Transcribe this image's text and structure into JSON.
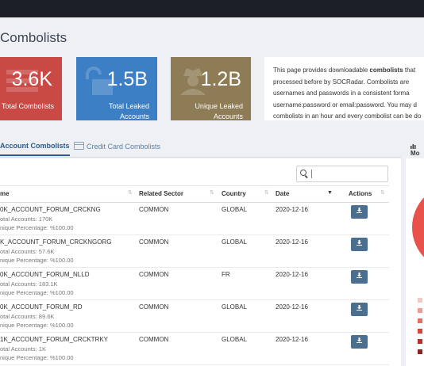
{
  "page_title": "Combolists",
  "stats": [
    {
      "value": "3.6K",
      "label_lines": [
        "Total Combolists"
      ],
      "icon": "list-icon",
      "color": "#c94a45"
    },
    {
      "value": "1.5B",
      "label_lines": [
        "Total Leaked",
        "Accounts"
      ],
      "icon": "unlock-icon",
      "color": "#3d7fc4"
    },
    {
      "value": "1.2B",
      "label_lines": [
        "Unique Leaked",
        "Accounts"
      ],
      "icon": "user-secret-icon",
      "color": "#8e7c56"
    }
  ],
  "description": {
    "lines": [
      "This page provides downloadable ",
      "processed before by SOCRadar. Combolists are",
      "usernames and passwords in a consistent forma",
      "username:password or email:password. You may d",
      "combolists in an hour and every combolist can be do"
    ],
    "bold_word": "combolists",
    "line1_tail": " that"
  },
  "tabs": {
    "active": "Account Combolists",
    "credit": "Credit Card Combolists"
  },
  "side_header": "Mo",
  "table": {
    "columns": {
      "name": "me",
      "sector": "Related Sector",
      "country": "Country",
      "date": "Date",
      "actions": "Actions"
    },
    "rows": [
      {
        "name": "0K_ACCOUNT_FORUM_CRCKNG",
        "accounts": "otal Accounts: 170K",
        "unique": "nique Percentage: %100.00",
        "sector": "COMMON",
        "country": "GLOBAL",
        "date": "2020-12-16"
      },
      {
        "name": "K_ACCOUNT_FORUM_CRCKNGORG",
        "accounts": "otal Accounts: 57.6K",
        "unique": "nique Percentage: %100.00",
        "sector": "COMMON",
        "country": "GLOBAL",
        "date": "2020-12-16"
      },
      {
        "name": "0K_ACCOUNT_FORUM_NLLD",
        "accounts": "otal Accounts: 183.1K",
        "unique": "nique Percentage: %100.00",
        "sector": "COMMON",
        "country": "FR",
        "date": "2020-12-16"
      },
      {
        "name": "0K_ACCOUNT_FORUM_RD",
        "accounts": "otal Accounts: 89.6K",
        "unique": "nique Percentage: %100.00",
        "sector": "COMMON",
        "country": "GLOBAL",
        "date": "2020-12-16"
      },
      {
        "name": "1K_ACCOUNT_FORUM_CRCKTRKY",
        "accounts": "otal Accounts: 1K",
        "unique": "nique Percentage: %100.00",
        "sector": "COMMON",
        "country": "GLOBAL",
        "date": "2020-12-16"
      }
    ]
  },
  "legend_colors": [
    "#f4c7c3",
    "#ef9a95",
    "#e86b64",
    "#d9443d",
    "#b8302a",
    "#8f231f"
  ]
}
